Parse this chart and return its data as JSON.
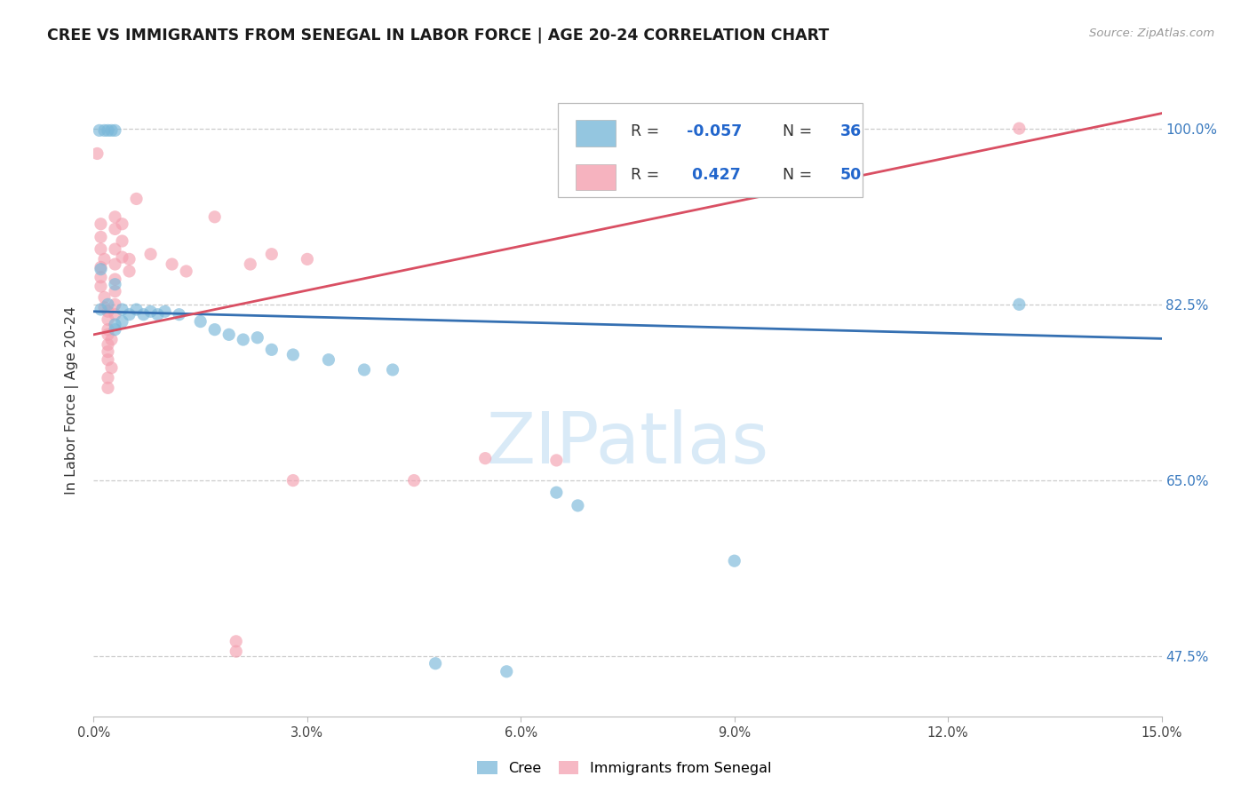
{
  "title": "CREE VS IMMIGRANTS FROM SENEGAL IN LABOR FORCE | AGE 20-24 CORRELATION CHART",
  "source": "Source: ZipAtlas.com",
  "ylabel": "In Labor Force | Age 20-24",
  "ytick_labels": [
    "47.5%",
    "65.0%",
    "82.5%",
    "100.0%"
  ],
  "ytick_values": [
    0.475,
    0.65,
    0.825,
    1.0
  ],
  "xtick_values": [
    0.0,
    0.03,
    0.06,
    0.09,
    0.12,
    0.15
  ],
  "xtick_labels": [
    "0.0%",
    "3.0%",
    "6.0%",
    "9.0%",
    "12.0%",
    "15.0%"
  ],
  "xmin": 0.0,
  "xmax": 0.15,
  "ymin": 0.415,
  "ymax": 1.045,
  "cree_color": "#7ab8d9",
  "senegal_color": "#f4a0b0",
  "cree_line_color": "#3570b2",
  "senegal_line_color": "#d94f63",
  "cree_trend_x": [
    0.0,
    0.15
  ],
  "cree_trend_y": [
    0.818,
    0.791
  ],
  "senegal_trend_x": [
    0.0,
    0.15
  ],
  "senegal_trend_y": [
    0.795,
    1.015
  ],
  "watermark": "ZIPatlas",
  "cree_R": "-0.057",
  "cree_N": "36",
  "senegal_R": "0.427",
  "senegal_N": "50",
  "cree_points": [
    [
      0.0008,
      0.998
    ],
    [
      0.0015,
      0.998
    ],
    [
      0.002,
      0.998
    ],
    [
      0.0025,
      0.998
    ],
    [
      0.003,
      0.998
    ],
    [
      0.001,
      0.86
    ],
    [
      0.001,
      0.82
    ],
    [
      0.002,
      0.825
    ],
    [
      0.003,
      0.845
    ],
    [
      0.003,
      0.805
    ],
    [
      0.003,
      0.8
    ],
    [
      0.004,
      0.82
    ],
    [
      0.004,
      0.808
    ],
    [
      0.005,
      0.815
    ],
    [
      0.006,
      0.82
    ],
    [
      0.007,
      0.815
    ],
    [
      0.008,
      0.818
    ],
    [
      0.009,
      0.815
    ],
    [
      0.01,
      0.818
    ],
    [
      0.012,
      0.815
    ],
    [
      0.015,
      0.808
    ],
    [
      0.017,
      0.8
    ],
    [
      0.019,
      0.795
    ],
    [
      0.021,
      0.79
    ],
    [
      0.023,
      0.792
    ],
    [
      0.025,
      0.78
    ],
    [
      0.028,
      0.775
    ],
    [
      0.033,
      0.77
    ],
    [
      0.038,
      0.76
    ],
    [
      0.042,
      0.76
    ],
    [
      0.048,
      0.468
    ],
    [
      0.058,
      0.46
    ],
    [
      0.065,
      0.638
    ],
    [
      0.068,
      0.625
    ],
    [
      0.09,
      0.57
    ],
    [
      0.13,
      0.825
    ]
  ],
  "senegal_points": [
    [
      0.0005,
      0.975
    ],
    [
      0.001,
      0.905
    ],
    [
      0.001,
      0.892
    ],
    [
      0.001,
      0.88
    ],
    [
      0.0015,
      0.87
    ],
    [
      0.001,
      0.862
    ],
    [
      0.001,
      0.852
    ],
    [
      0.001,
      0.843
    ],
    [
      0.0015,
      0.832
    ],
    [
      0.0015,
      0.822
    ],
    [
      0.002,
      0.818
    ],
    [
      0.002,
      0.81
    ],
    [
      0.002,
      0.8
    ],
    [
      0.002,
      0.795
    ],
    [
      0.0025,
      0.79
    ],
    [
      0.002,
      0.785
    ],
    [
      0.002,
      0.778
    ],
    [
      0.002,
      0.77
    ],
    [
      0.0025,
      0.762
    ],
    [
      0.002,
      0.752
    ],
    [
      0.002,
      0.742
    ],
    [
      0.003,
      0.912
    ],
    [
      0.003,
      0.9
    ],
    [
      0.003,
      0.88
    ],
    [
      0.003,
      0.865
    ],
    [
      0.003,
      0.85
    ],
    [
      0.003,
      0.838
    ],
    [
      0.003,
      0.825
    ],
    [
      0.004,
      0.905
    ],
    [
      0.004,
      0.888
    ],
    [
      0.004,
      0.872
    ],
    [
      0.005,
      0.87
    ],
    [
      0.005,
      0.858
    ],
    [
      0.006,
      0.93
    ],
    [
      0.008,
      0.875
    ],
    [
      0.011,
      0.865
    ],
    [
      0.013,
      0.858
    ],
    [
      0.017,
      0.912
    ],
    [
      0.02,
      0.49
    ],
    [
      0.022,
      0.865
    ],
    [
      0.025,
      0.875
    ],
    [
      0.03,
      0.87
    ],
    [
      0.02,
      0.48
    ],
    [
      0.028,
      0.65
    ],
    [
      0.045,
      0.65
    ],
    [
      0.055,
      0.672
    ],
    [
      0.065,
      0.67
    ],
    [
      0.1,
      0.98
    ],
    [
      0.13,
      1.0
    ],
    [
      0.003,
      0.815
    ]
  ]
}
